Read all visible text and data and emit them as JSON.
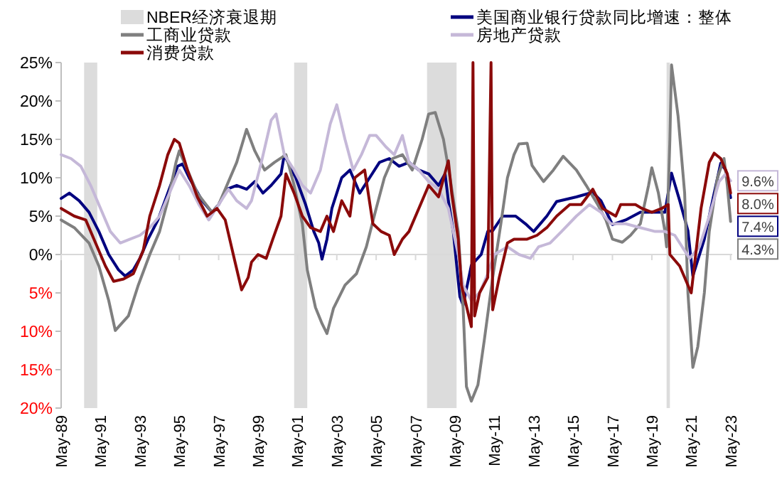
{
  "chart_data": {
    "type": "line",
    "legend": "top",
    "xlim": [
      "1989-05",
      "2023-06"
    ],
    "ylim": [
      -20,
      25
    ],
    "yticks": [
      {
        "value": 25,
        "label": "25%"
      },
      {
        "value": 20,
        "label": "20%"
      },
      {
        "value": 15,
        "label": "15%"
      },
      {
        "value": 10,
        "label": "10%"
      },
      {
        "value": 5,
        "label": "5%"
      },
      {
        "value": 0,
        "label": "0%"
      },
      {
        "value": -5,
        "label": "5%"
      },
      {
        "value": -10,
        "label": "10%"
      },
      {
        "value": -15,
        "label": "15%"
      },
      {
        "value": -20,
        "label": "20%"
      }
    ],
    "xticks": [
      {
        "value": "1989-05",
        "label": "May-89"
      },
      {
        "value": "1991-05",
        "label": "May-91"
      },
      {
        "value": "1993-05",
        "label": "May-93"
      },
      {
        "value": "1995-05",
        "label": "May-95"
      },
      {
        "value": "1997-05",
        "label": "May-97"
      },
      {
        "value": "1999-05",
        "label": "May-99"
      },
      {
        "value": "2001-05",
        "label": "May-01"
      },
      {
        "value": "2003-05",
        "label": "May-03"
      },
      {
        "value": "2005-05",
        "label": "May-05"
      },
      {
        "value": "2007-05",
        "label": "May-07"
      },
      {
        "value": "2009-05",
        "label": "May-09"
      },
      {
        "value": "2011-05",
        "label": "May-11"
      },
      {
        "value": "2013-05",
        "label": "May-13"
      },
      {
        "value": "2015-05",
        "label": "May-15"
      },
      {
        "value": "2017-05",
        "label": "May-17"
      },
      {
        "value": "2019-05",
        "label": "May-19"
      },
      {
        "value": "2021-05",
        "label": "May-21"
      },
      {
        "value": "2023-05",
        "label": "May-23"
      }
    ],
    "bands": [
      {
        "axis": "x",
        "from": "1990-07",
        "to": "1991-03",
        "label": "NBER经济衰退期",
        "color": "#dcdcdc"
      },
      {
        "axis": "x",
        "from": "2001-03",
        "to": "2001-11",
        "color": "#dcdcdc"
      },
      {
        "axis": "x",
        "from": "2007-12",
        "to": "2009-06",
        "color": "#dcdcdc"
      },
      {
        "axis": "x",
        "from": "2020-02",
        "to": "2020-04",
        "color": "#dcdcdc"
      }
    ],
    "series": [
      {
        "name": "美国商业银行贷款同比增速：整体",
        "color": "#00007f",
        "x": [
          "1989-05",
          "1989-10",
          "1990-04",
          "1990-10",
          "1991-04",
          "1991-10",
          "1992-04",
          "1992-08",
          "1993-01",
          "1993-05",
          "1993-10",
          "1994-04",
          "1994-10",
          "1995-04",
          "1995-07",
          "1995-11",
          "1996-07",
          "1997-01",
          "1997-05",
          "1997-10",
          "1998-04",
          "1998-10",
          "1999-03",
          "1999-08",
          "2000-01",
          "2000-07",
          "2000-09",
          "2001-04",
          "2001-10",
          "2002-03",
          "2002-06",
          "2002-08",
          "2002-11",
          "2003-02",
          "2003-08",
          "2004-01",
          "2004-07",
          "2005-01",
          "2005-07",
          "2006-01",
          "2006-07",
          "2007-01",
          "2007-07",
          "2008-01",
          "2008-07",
          "2008-11",
          "2009-01",
          "2009-04",
          "2009-08",
          "2009-10",
          "2010-03",
          "2010-09",
          "2011-01",
          "2011-04",
          "2011-10",
          "2012-06",
          "2012-12",
          "2013-05",
          "2014-01",
          "2014-07",
          "2015-07",
          "2016-05",
          "2016-10",
          "2017-05",
          "2018-01",
          "2018-10",
          "2019-07",
          "2020-01",
          "2020-05",
          "2020-10",
          "2021-03",
          "2021-06",
          "2022-01",
          "2022-07",
          "2022-11",
          "2023-02",
          "2023-05"
        ],
        "values": [
          7.3,
          8,
          7,
          5.5,
          3,
          0,
          -2,
          -2.8,
          -2,
          -0.5,
          2,
          4.5,
          8,
          11.5,
          11.8,
          10,
          7,
          5.5,
          6.5,
          8.5,
          9,
          8.5,
          9.5,
          8,
          9,
          10.5,
          13,
          10,
          6.5,
          3,
          1.5,
          -0.6,
          2,
          6,
          10,
          11,
          8,
          10,
          12,
          12.5,
          11.5,
          12,
          11,
          10.5,
          9,
          10.5,
          7,
          3,
          -5.5,
          -6.6,
          -1.4,
          0,
          3,
          3.1,
          5,
          5,
          4,
          3,
          5,
          6.9,
          7.5,
          8.1,
          7,
          3.9,
          4.5,
          5.5,
          5.5,
          5.5,
          10.6,
          7,
          3.1,
          -2.8,
          2,
          8,
          11.9,
          11,
          7.4
        ],
        "value_labels": [
          null,
          null,
          null,
          null,
          null,
          null,
          null,
          null,
          null,
          null,
          null,
          null,
          null,
          null,
          null,
          null,
          null,
          null,
          null,
          null,
          null,
          null,
          null,
          null,
          null,
          null,
          null,
          null,
          null,
          null,
          null,
          null,
          null,
          null,
          null,
          null,
          null,
          null,
          null,
          null,
          null,
          null,
          null,
          null,
          null,
          null,
          null,
          null,
          null,
          null,
          null,
          null,
          null,
          null,
          null,
          null,
          null,
          null,
          null,
          null,
          null,
          null,
          null,
          null,
          null,
          null,
          null,
          null,
          null,
          null,
          null,
          null,
          null,
          null,
          null,
          null,
          "7.4%"
        ]
      },
      {
        "name": "工商业贷款",
        "color": "#7f7f7f",
        "x": [
          "1989-05",
          "1990-01",
          "1990-10",
          "1991-04",
          "1991-10",
          "1992-02",
          "1992-10",
          "1993-04",
          "1993-11",
          "1994-05",
          "1994-10",
          "1995-03",
          "1995-05",
          "1995-10",
          "1996-04",
          "1997-01",
          "1997-05",
          "1997-10",
          "1998-04",
          "1998-10",
          "1999-03",
          "1999-09",
          "2000-03",
          "2000-10",
          "2001-03",
          "2001-08",
          "2001-11",
          "2002-04",
          "2002-08",
          "2002-11",
          "2003-03",
          "2003-10",
          "2004-05",
          "2004-11",
          "2005-05",
          "2005-10",
          "2006-03",
          "2006-09",
          "2007-03",
          "2007-09",
          "2008-01",
          "2008-05",
          "2008-10",
          "2009-02",
          "2009-07",
          "2009-10",
          "2009-12",
          "2010-03",
          "2010-07",
          "2010-11",
          "2011-04",
          "2011-09",
          "2012-01",
          "2012-05",
          "2012-08",
          "2013-01",
          "2013-04",
          "2013-11",
          "2014-05",
          "2014-11",
          "2015-07",
          "2016-01",
          "2016-08",
          "2017-01",
          "2017-05",
          "2017-11",
          "2018-04",
          "2018-10",
          "2019-03",
          "2019-05",
          "2019-09",
          "2020-01",
          "2020-02",
          "2020-04",
          "2020-05",
          "2020-09",
          "2020-11",
          "2021-01",
          "2021-03",
          "2021-06",
          "2021-09",
          "2022-01",
          "2022-04",
          "2022-09",
          "2023-01",
          "2023-03",
          "2023-05"
        ],
        "values": [
          4.5,
          3.5,
          1.5,
          -1.5,
          -6,
          -9.9,
          -8,
          -4,
          0,
          3,
          7,
          12,
          13.5,
          11,
          8,
          5.5,
          6.5,
          9,
          12,
          16.3,
          13.5,
          11,
          12,
          13,
          9,
          4,
          -2,
          -6.9,
          -9,
          -10.3,
          -7,
          -4,
          -2.5,
          1,
          6,
          10,
          12.5,
          13,
          11,
          15,
          18.3,
          18.5,
          15,
          10,
          3,
          -7,
          -17.2,
          -19.1,
          -17,
          -11,
          -3,
          4,
          10,
          13,
          14.4,
          14.5,
          11.6,
          9.5,
          11,
          12.8,
          11,
          9,
          6.5,
          4.5,
          2,
          1.6,
          2.5,
          4,
          9,
          11.3,
          8,
          3,
          1,
          15,
          24.7,
          18,
          13,
          8,
          -5,
          -14.7,
          -12,
          -5,
          3,
          10,
          12.5,
          9,
          4.3
        ],
        "value_labels": [
          null,
          null,
          null,
          null,
          null,
          null,
          null,
          null,
          null,
          null,
          null,
          null,
          null,
          null,
          null,
          null,
          null,
          null,
          null,
          null,
          null,
          null,
          null,
          null,
          null,
          null,
          null,
          null,
          null,
          null,
          null,
          null,
          null,
          null,
          null,
          null,
          null,
          null,
          null,
          null,
          null,
          null,
          null,
          null,
          null,
          null,
          null,
          null,
          null,
          null,
          null,
          null,
          null,
          null,
          null,
          null,
          null,
          null,
          null,
          null,
          null,
          null,
          null,
          null,
          null,
          null,
          null,
          null,
          null,
          null,
          null,
          null,
          null,
          null,
          null,
          null,
          null,
          null,
          null,
          null,
          null,
          null,
          null,
          null,
          null,
          null,
          "4.3%"
        ]
      },
      {
        "name": "房地产贷款",
        "color": "#c5b8d8",
        "x": [
          "1989-05",
          "1989-11",
          "1990-05",
          "1990-11",
          "1991-05",
          "1991-11",
          "1992-05",
          "1992-11",
          "1993-05",
          "1993-11",
          "1994-05",
          "1994-11",
          "1995-05",
          "1995-11",
          "1996-05",
          "1996-11",
          "1997-05",
          "1997-11",
          "1998-04",
          "1998-10",
          "1999-01",
          "1999-07",
          "2000-01",
          "2000-04",
          "2000-09",
          "2001-03",
          "2001-08",
          "2002-01",
          "2002-07",
          "2003-01",
          "2003-05",
          "2003-10",
          "2004-03",
          "2004-08",
          "2005-01",
          "2005-05",
          "2005-11",
          "2006-04",
          "2006-09",
          "2007-01",
          "2007-07",
          "2008-01",
          "2008-07",
          "2009-01",
          "2009-07",
          "2009-10",
          "2010-03",
          "2010-08",
          "2011-01",
          "2011-05",
          "2012-01",
          "2012-08",
          "2013-03",
          "2013-08",
          "2014-03",
          "2014-10",
          "2015-07",
          "2016-03",
          "2016-10",
          "2017-04",
          "2018-01",
          "2018-10",
          "2019-07",
          "2020-01",
          "2020-07",
          "2021-01",
          "2021-04",
          "2021-10",
          "2022-04",
          "2022-10",
          "2023-02",
          "2023-05"
        ],
        "values": [
          13,
          12.5,
          11.5,
          9,
          6,
          3,
          1.5,
          2,
          2.5,
          3.5,
          5,
          8,
          11,
          9,
          6.5,
          4.5,
          6.5,
          8.5,
          7,
          6,
          7,
          12,
          17.5,
          18.3,
          13,
          11,
          9,
          8,
          11,
          17,
          19.5,
          15,
          11,
          13,
          15.5,
          15.5,
          14,
          13,
          15.5,
          12,
          11,
          9.5,
          8.5,
          6,
          0,
          -4,
          -6,
          -5,
          -2.5,
          0,
          1,
          0,
          -0.5,
          1,
          1.5,
          3,
          5,
          6.5,
          5.5,
          4,
          4,
          3.5,
          3,
          3,
          2.5,
          0.5,
          -0.5,
          1,
          5,
          9.5,
          10.5,
          9.6
        ],
        "value_labels": [
          null,
          null,
          null,
          null,
          null,
          null,
          null,
          null,
          null,
          null,
          null,
          null,
          null,
          null,
          null,
          null,
          null,
          null,
          null,
          null,
          null,
          null,
          null,
          null,
          null,
          null,
          null,
          null,
          null,
          null,
          null,
          null,
          null,
          null,
          null,
          null,
          null,
          null,
          null,
          null,
          null,
          null,
          null,
          null,
          null,
          null,
          null,
          null,
          null,
          null,
          null,
          null,
          null,
          null,
          null,
          null,
          null,
          null,
          null,
          null,
          null,
          null,
          null,
          null,
          null,
          null,
          null,
          null,
          null,
          null,
          null,
          "9.6%"
        ]
      },
      {
        "name": "消费贷款",
        "color": "#8b0a0a",
        "x": [
          "1989-05",
          "1990-01",
          "1990-08",
          "1991-03",
          "1991-08",
          "1992-01",
          "1992-07",
          "1993-01",
          "1993-07",
          "1993-11",
          "1994-05",
          "1994-10",
          "1995-02",
          "1995-05",
          "1995-10",
          "1996-04",
          "1996-10",
          "1997-04",
          "1997-09",
          "1998-03",
          "1998-07",
          "1998-11",
          "1999-01",
          "1999-05",
          "1999-10",
          "2000-02",
          "2000-07",
          "2000-10",
          "2001-03",
          "2001-08",
          "2002-01",
          "2002-07",
          "2002-11",
          "2003-03",
          "2003-08",
          "2004-01",
          "2004-04",
          "2004-10",
          "2005-03",
          "2005-08",
          "2006-01",
          "2006-04",
          "2006-09",
          "2007-01",
          "2007-07",
          "2008-01",
          "2008-07",
          "2009-01",
          "2009-03",
          "2009-07",
          "2009-09",
          "2010-03",
          "2010-04",
          "2010-05",
          "2010-08",
          "2011-01",
          "2011-03",
          "2011-04",
          "2011-08",
          "2012-01",
          "2012-05",
          "2013-01",
          "2013-07",
          "2014-01",
          "2014-07",
          "2015-03",
          "2015-10",
          "2016-05",
          "2016-11",
          "2017-07",
          "2017-10",
          "2018-07",
          "2018-11",
          "2019-05",
          "2019-11",
          "2020-03",
          "2020-04",
          "2020-10",
          "2021-05",
          "2021-11",
          "2022-04",
          "2022-07",
          "2022-11",
          "2023-03",
          "2023-05"
        ],
        "values": [
          6,
          5,
          4.5,
          1,
          -1.5,
          -3.5,
          -3.2,
          -2.5,
          0.5,
          5,
          9,
          13,
          15,
          14.5,
          11,
          7.5,
          5,
          6,
          4.5,
          -1,
          -4.6,
          -3,
          -1,
          0,
          -0.5,
          2,
          5,
          10.5,
          8,
          5,
          3.5,
          3,
          5,
          3,
          7,
          5,
          10,
          11,
          4,
          3,
          2.5,
          0,
          2,
          3,
          6,
          9,
          7.5,
          12.2,
          8,
          2,
          -4,
          -9.4,
          25,
          -8,
          -5,
          -3,
          25,
          -7.2,
          -3,
          1.5,
          2,
          2,
          2.5,
          3.5,
          5,
          6.5,
          6.5,
          8.5,
          6,
          5,
          6.5,
          6.5,
          6,
          5.5,
          6,
          6.5,
          0,
          -1.5,
          -5,
          6,
          12,
          13.2,
          12.5,
          10.5,
          8.0
        ],
        "value_labels": [
          null,
          null,
          null,
          null,
          null,
          null,
          null,
          null,
          null,
          null,
          null,
          null,
          null,
          null,
          null,
          null,
          null,
          null,
          null,
          null,
          null,
          null,
          null,
          null,
          null,
          null,
          null,
          null,
          null,
          null,
          null,
          null,
          null,
          null,
          null,
          null,
          null,
          null,
          null,
          null,
          null,
          null,
          null,
          null,
          null,
          null,
          null,
          null,
          null,
          null,
          null,
          null,
          null,
          null,
          null,
          null,
          null,
          null,
          null,
          null,
          null,
          null,
          null,
          null,
          null,
          null,
          null,
          null,
          null,
          null,
          null,
          null,
          null,
          null,
          null,
          null,
          null,
          null,
          null,
          null,
          null,
          null,
          null,
          null,
          "8.0%"
        ]
      }
    ]
  }
}
